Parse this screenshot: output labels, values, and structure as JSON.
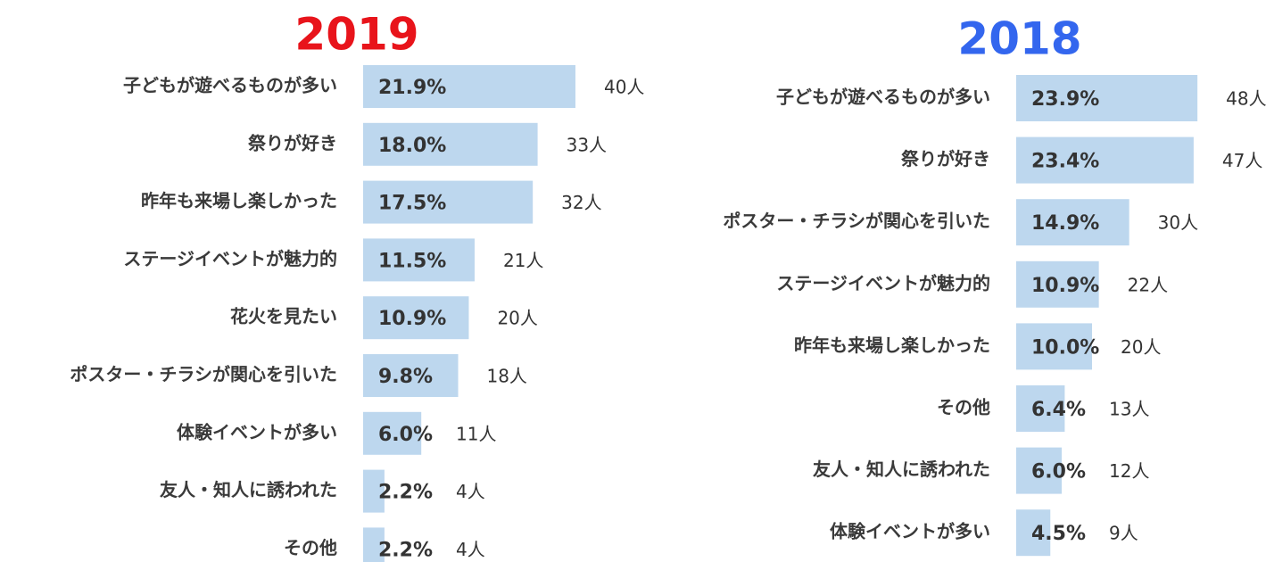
{
  "chart_data": [
    {
      "type": "bar",
      "orientation": "horizontal",
      "title": "2019",
      "title_color": "#e8141b",
      "color": "#bdd7ee",
      "categories": [
        "子どもが遊べるものが多い",
        "祭りが好き",
        "昨年も来場し楽しかった",
        "ステージイベントが魅力的",
        "花火を見たい",
        "ポスター・チラシが関心を引いた",
        "体験イベントが多い",
        "友人・知人に誘われた",
        "その他"
      ],
      "values": [
        21.9,
        18.0,
        17.5,
        11.5,
        10.9,
        9.8,
        6.0,
        2.2,
        2.2
      ],
      "value_labels": [
        "21.9%",
        "18.0%",
        "17.5%",
        "11.5%",
        "10.9%",
        "9.8%",
        "6.0%",
        "2.2%",
        "2.2%"
      ],
      "count_labels": [
        "40人",
        "33人",
        "32人",
        "21人",
        "20人",
        "18人",
        "11人",
        "4人",
        "4人"
      ],
      "xlim": [
        0,
        30
      ]
    },
    {
      "type": "bar",
      "orientation": "horizontal",
      "title": "2018",
      "title_color": "#3366ee",
      "color": "#bdd7ee",
      "categories": [
        "子どもが遊べるものが多い",
        "祭りが好き",
        "ポスター・チラシが関心を引いた",
        "ステージイベントが魅力的",
        "昨年も来場し楽しかった",
        "その他",
        "友人・知人に誘われた",
        "体験イベントが多い"
      ],
      "values": [
        23.9,
        23.4,
        14.9,
        10.9,
        10.0,
        6.4,
        6.0,
        4.5
      ],
      "value_labels": [
        "23.9%",
        "23.4%",
        "14.9%",
        "10.9%",
        "10.0%",
        "6.4%",
        "6.0%",
        "4.5%"
      ],
      "count_labels": [
        "48人",
        "47人",
        "30人",
        "22人",
        "20人",
        "13人",
        "12人",
        "9人"
      ],
      "xlim": [
        0,
        30
      ]
    }
  ]
}
